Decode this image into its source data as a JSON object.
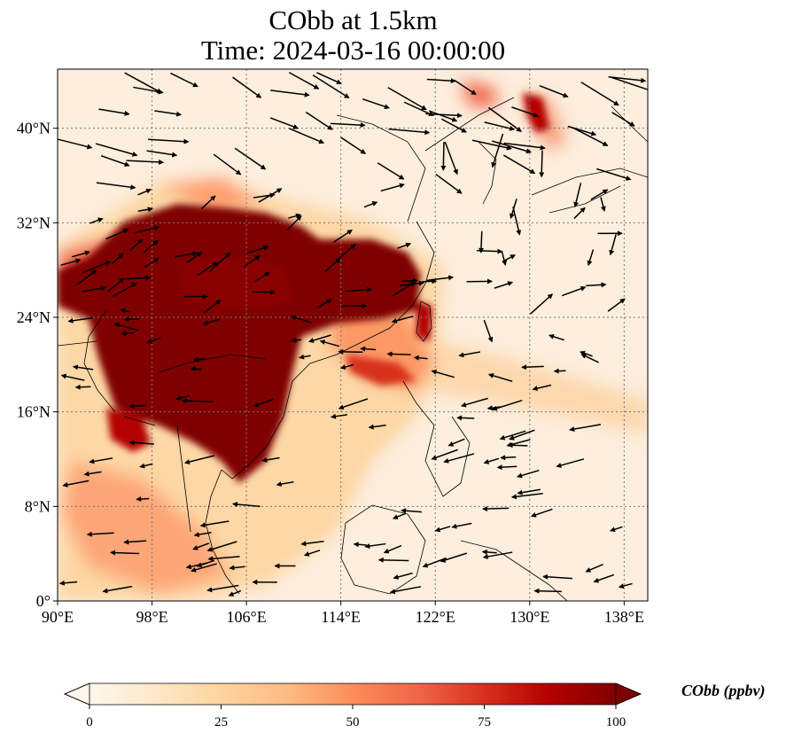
{
  "title": {
    "line1": "CObb at 1.5km",
    "line2": "Time: 2024-03-16 00:00:00"
  },
  "map": {
    "projection": "PlateCarree",
    "lon_range": [
      90,
      140
    ],
    "lat_range": [
      0,
      45
    ],
    "x_ticks": [
      {
        "value": 90,
        "label": "90°E"
      },
      {
        "value": 98,
        "label": "98°E"
      },
      {
        "value": 106,
        "label": "106°E"
      },
      {
        "value": 114,
        "label": "114°E"
      },
      {
        "value": 122,
        "label": "122°E"
      },
      {
        "value": 130,
        "label": "130°E"
      },
      {
        "value": 138,
        "label": "138°E"
      }
    ],
    "y_ticks": [
      {
        "value": 0,
        "label": "0°"
      },
      {
        "value": 8,
        "label": "8°N"
      },
      {
        "value": 16,
        "label": "16°N"
      },
      {
        "value": 24,
        "label": "24°N"
      },
      {
        "value": 32,
        "label": "32°N"
      },
      {
        "value": 40,
        "label": "40°N"
      }
    ],
    "gridlines": true,
    "field": "CObb",
    "level": "1.5km",
    "wind_vectors": true
  },
  "colorbar": {
    "label": "CObb (ppbv)",
    "min": 0,
    "max": 100,
    "ticks": [
      {
        "value": 0,
        "label": "0"
      },
      {
        "value": 25,
        "label": "25"
      },
      {
        "value": 50,
        "label": "50"
      },
      {
        "value": 75,
        "label": "75"
      },
      {
        "value": 100,
        "label": "100"
      }
    ],
    "extend": "both",
    "colormap": "OrRd",
    "colors": [
      "#fff7ec",
      "#fee8c8",
      "#fdd49e",
      "#fdbb84",
      "#fc8d59",
      "#ef6548",
      "#d7301f",
      "#b30000",
      "#7f0000"
    ]
  }
}
